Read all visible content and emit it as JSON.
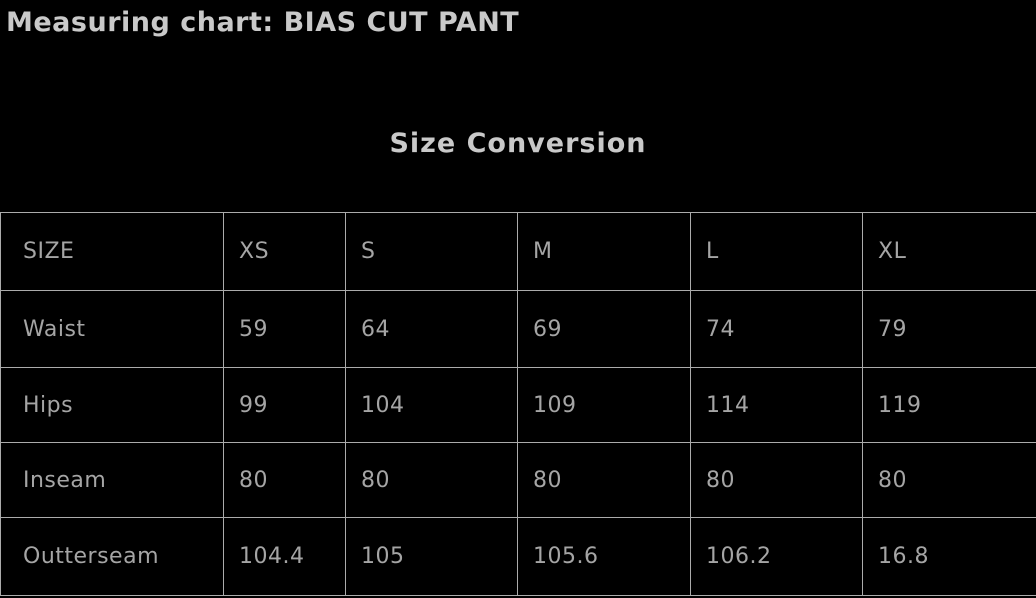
{
  "page": {
    "title": "Measuring chart: BIAS CUT PANT",
    "section_heading": "Size Conversion"
  },
  "colors": {
    "background": "#000000",
    "title_text": "#c9c9c9",
    "heading_text": "#c9c9c9",
    "cell_text": "#a5a5a5",
    "grid_border": "#ababab"
  },
  "chart_data": {
    "type": "table",
    "title": "Measuring chart: BIAS CUT PANT",
    "subtitle": "Size Conversion",
    "columns": [
      "SIZE",
      "XS",
      "S",
      "M",
      "L",
      "XL"
    ],
    "rows": [
      {
        "label": "Waist",
        "values": [
          "59",
          "64",
          "69",
          "74",
          "79"
        ]
      },
      {
        "label": "Hips",
        "values": [
          "99",
          "104",
          "109",
          "114",
          "119"
        ]
      },
      {
        "label": "Inseam",
        "values": [
          "80",
          "80",
          "80",
          "80",
          "80"
        ]
      },
      {
        "label": "Outterseam",
        "values": [
          "104.4",
          "105",
          "105.6",
          "106.2",
          "16.8"
        ]
      }
    ],
    "layout": {
      "grid": true,
      "header_row": true,
      "right_edge_clipped": true
    }
  }
}
